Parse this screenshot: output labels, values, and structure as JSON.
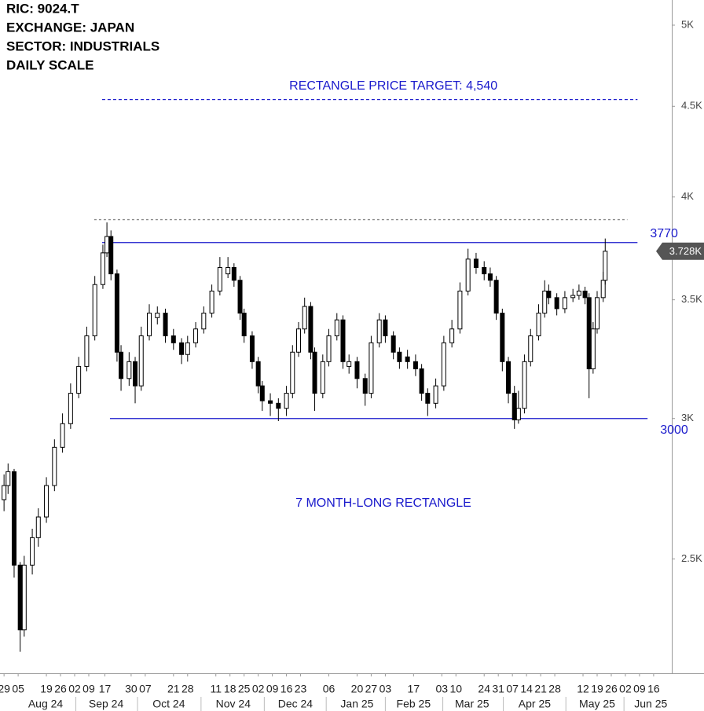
{
  "chart_data": {
    "type": "candlestick",
    "title": [
      "RIC:  9024.T",
      "EXCHANGE:  JAPAN",
      "SECTOR:  INDUSTRIALS",
      "DAILY SCALE"
    ],
    "log_scale": true,
    "up_color": "#ffffff",
    "down_color": "#000000",
    "outline_color": "#000000",
    "x": [
      0,
      2,
      5,
      8,
      10,
      14,
      17,
      21,
      25,
      29,
      33,
      37,
      41,
      45,
      49,
      51,
      53,
      56,
      58,
      62,
      65,
      68,
      72,
      76,
      80,
      84,
      88,
      91,
      95,
      99,
      103,
      107,
      111,
      114,
      117,
      119,
      123,
      126,
      128,
      132,
      136,
      140,
      143,
      146,
      149,
      152,
      154,
      158,
      161,
      165,
      168,
      171,
      175,
      179,
      182,
      186,
      189,
      193,
      196,
      200,
      204,
      207,
      210,
      214,
      218,
      222,
      226,
      230,
      234,
      238,
      241,
      244,
      247,
      250,
      253,
      255,
      258,
      261,
      265,
      268,
      270,
      274,
      278,
      282,
      285,
      288,
      290,
      292,
      294,
      297,
      298
    ],
    "open": [
      2700,
      2750,
      2800,
      2480,
      2280,
      2480,
      2570,
      2640,
      2750,
      2890,
      2980,
      3100,
      3210,
      3340,
      3570,
      3720,
      3800,
      3620,
      3270,
      3160,
      3230,
      3130,
      3340,
      3420,
      3440,
      3340,
      3310,
      3260,
      3310,
      3370,
      3440,
      3540,
      3620,
      3650,
      3590,
      3440,
      3340,
      3230,
      3130,
      3070,
      3060,
      3040,
      3100,
      3270,
      3370,
      3470,
      3270,
      3100,
      3230,
      3340,
      3410,
      3210,
      3230,
      3160,
      3100,
      3310,
      3410,
      3340,
      3270,
      3250,
      3230,
      3200,
      3100,
      3060,
      3130,
      3310,
      3370,
      3540,
      3690,
      3650,
      3620,
      3590,
      3440,
      3230,
      3100,
      2995,
      3040,
      3230,
      3340,
      3440,
      3540,
      3510,
      3460,
      3510,
      3520,
      3540,
      3510,
      3200,
      3370,
      3510,
      3590
    ],
    "high": [
      2790,
      2830,
      2810,
      2490,
      2510,
      2600,
      2670,
      2780,
      2920,
      3020,
      3140,
      3250,
      3380,
      3610,
      3760,
      3870,
      3830,
      3640,
      3300,
      3270,
      3250,
      3380,
      3480,
      3470,
      3460,
      3370,
      3330,
      3340,
      3400,
      3470,
      3570,
      3700,
      3700,
      3670,
      3610,
      3460,
      3360,
      3250,
      3150,
      3100,
      3080,
      3130,
      3300,
      3400,
      3510,
      3490,
      3290,
      3260,
      3370,
      3440,
      3430,
      3260,
      3250,
      3180,
      3340,
      3440,
      3430,
      3360,
      3290,
      3280,
      3260,
      3220,
      3120,
      3160,
      3340,
      3410,
      3580,
      3740,
      3720,
      3680,
      3650,
      3610,
      3460,
      3250,
      3130,
      3110,
      3260,
      3370,
      3480,
      3590,
      3570,
      3530,
      3540,
      3550,
      3570,
      3560,
      3530,
      3400,
      3540,
      3630,
      3790
    ],
    "low": [
      2660,
      2720,
      2440,
      2216,
      2260,
      2450,
      2540,
      2620,
      2730,
      2870,
      2960,
      3080,
      3190,
      3320,
      3550,
      3700,
      3590,
      3230,
      3110,
      3130,
      3060,
      3110,
      3320,
      3390,
      3310,
      3280,
      3220,
      3230,
      3290,
      3350,
      3420,
      3520,
      3600,
      3560,
      3410,
      3310,
      3200,
      3100,
      3030,
      3010,
      2990,
      3010,
      3080,
      3250,
      3350,
      3240,
      3030,
      3080,
      3210,
      3320,
      3200,
      3180,
      3120,
      3050,
      3080,
      3290,
      3310,
      3240,
      3200,
      3200,
      3170,
      3070,
      3010,
      3040,
      3110,
      3290,
      3350,
      3520,
      3620,
      3590,
      3560,
      3410,
      3190,
      3060,
      2960,
      2980,
      3020,
      3210,
      3320,
      3420,
      3480,
      3430,
      3440,
      3490,
      3500,
      3480,
      3080,
      3180,
      3350,
      3490,
      3570
    ],
    "close": [
      2750,
      2800,
      2480,
      2280,
      2480,
      2570,
      2640,
      2750,
      2890,
      2980,
      3100,
      3210,
      3340,
      3570,
      3720,
      3800,
      3620,
      3270,
      3160,
      3230,
      3130,
      3340,
      3440,
      3440,
      3340,
      3310,
      3260,
      3310,
      3370,
      3440,
      3540,
      3650,
      3650,
      3590,
      3440,
      3340,
      3230,
      3130,
      3070,
      3060,
      3040,
      3100,
      3270,
      3370,
      3470,
      3270,
      3100,
      3230,
      3340,
      3410,
      3230,
      3230,
      3160,
      3100,
      3310,
      3410,
      3340,
      3270,
      3230,
      3230,
      3200,
      3100,
      3060,
      3130,
      3310,
      3370,
      3540,
      3690,
      3650,
      3620,
      3590,
      3440,
      3230,
      3100,
      2995,
      3040,
      3230,
      3340,
      3440,
      3540,
      3510,
      3460,
      3510,
      3520,
      3540,
      3510,
      3200,
      3370,
      3510,
      3590,
      3728
    ],
    "xlim": [
      -2,
      331
    ],
    "ylim": [
      2155,
      5166
    ],
    "yticks": [
      {
        "value": 2500,
        "label": "2.5K"
      },
      {
        "value": 3000,
        "label": "3K"
      },
      {
        "value": 3500,
        "label": "3.5K"
      },
      {
        "value": 4000,
        "label": "4K"
      },
      {
        "value": 4500,
        "label": "4.5K"
      },
      {
        "value": 5000,
        "label": "5K"
      }
    ],
    "xticks": [
      {
        "value": 0,
        "label": "29"
      },
      {
        "value": 7,
        "label": "05"
      },
      {
        "value": 21,
        "label": "19"
      },
      {
        "value": 28,
        "label": "26"
      },
      {
        "value": 35,
        "label": "02"
      },
      {
        "value": 42,
        "label": "09"
      },
      {
        "value": 50,
        "label": "17"
      },
      {
        "value": 63,
        "label": "30"
      },
      {
        "value": 70,
        "label": "07"
      },
      {
        "value": 84,
        "label": "21"
      },
      {
        "value": 91,
        "label": "28"
      },
      {
        "value": 105,
        "label": "11"
      },
      {
        "value": 112,
        "label": "18"
      },
      {
        "value": 119,
        "label": "25"
      },
      {
        "value": 126,
        "label": "02"
      },
      {
        "value": 133,
        "label": "09"
      },
      {
        "value": 140,
        "label": "16"
      },
      {
        "value": 147,
        "label": "23"
      },
      {
        "value": 161,
        "label": "06"
      },
      {
        "value": 175,
        "label": "20"
      },
      {
        "value": 182,
        "label": "27"
      },
      {
        "value": 189,
        "label": "03"
      },
      {
        "value": 203,
        "label": "17"
      },
      {
        "value": 217,
        "label": "03"
      },
      {
        "value": 224,
        "label": "10"
      },
      {
        "value": 238,
        "label": "24"
      },
      {
        "value": 245,
        "label": "31"
      },
      {
        "value": 252,
        "label": "07"
      },
      {
        "value": 259,
        "label": "14"
      },
      {
        "value": 266,
        "label": "21"
      },
      {
        "value": 273,
        "label": "28"
      },
      {
        "value": 287,
        "label": "12"
      },
      {
        "value": 294,
        "label": "19"
      },
      {
        "value": 301,
        "label": "26"
      },
      {
        "value": 308,
        "label": "02"
      },
      {
        "value": 315,
        "label": "09"
      },
      {
        "value": 322,
        "label": "16"
      }
    ],
    "month_labels": [
      {
        "value": 20.6,
        "label": "Aug 24"
      },
      {
        "value": 50.6,
        "label": "Sep 24"
      },
      {
        "value": 81.7,
        "label": "Oct 24"
      },
      {
        "value": 113.6,
        "label": "Nov 24"
      },
      {
        "value": 144.4,
        "label": "Dec 24"
      },
      {
        "value": 175,
        "label": "Jan 25"
      },
      {
        "value": 203,
        "label": "Feb 25"
      },
      {
        "value": 232,
        "label": "Mar 25"
      },
      {
        "value": 263,
        "label": "Apr 25"
      },
      {
        "value": 294,
        "label": "May 25"
      },
      {
        "value": 320.6,
        "label": "Jun 25"
      }
    ],
    "last_price": {
      "value": 3728,
      "label": "3.728K"
    },
    "levels": [
      {
        "value": 4540,
        "x": [
          48.6,
          314
        ],
        "style": "dashed",
        "color": "#1a1acc",
        "label": "RECTANGLE PRICE TARGET: 4,540"
      },
      {
        "value": 3884,
        "x": [
          44.7,
          309
        ],
        "style": "dotted",
        "color": "#888888"
      },
      {
        "value": 3770,
        "x": [
          48.6,
          314
        ],
        "style": "solid",
        "color": "#1a1acc",
        "label": "3770"
      },
      {
        "value": 3000,
        "x": [
          52.5,
          319
        ],
        "style": "solid",
        "color": "#1a1acc",
        "label": "3000"
      }
    ],
    "annotation": "7 MONTH-LONG RECTANGLE"
  }
}
